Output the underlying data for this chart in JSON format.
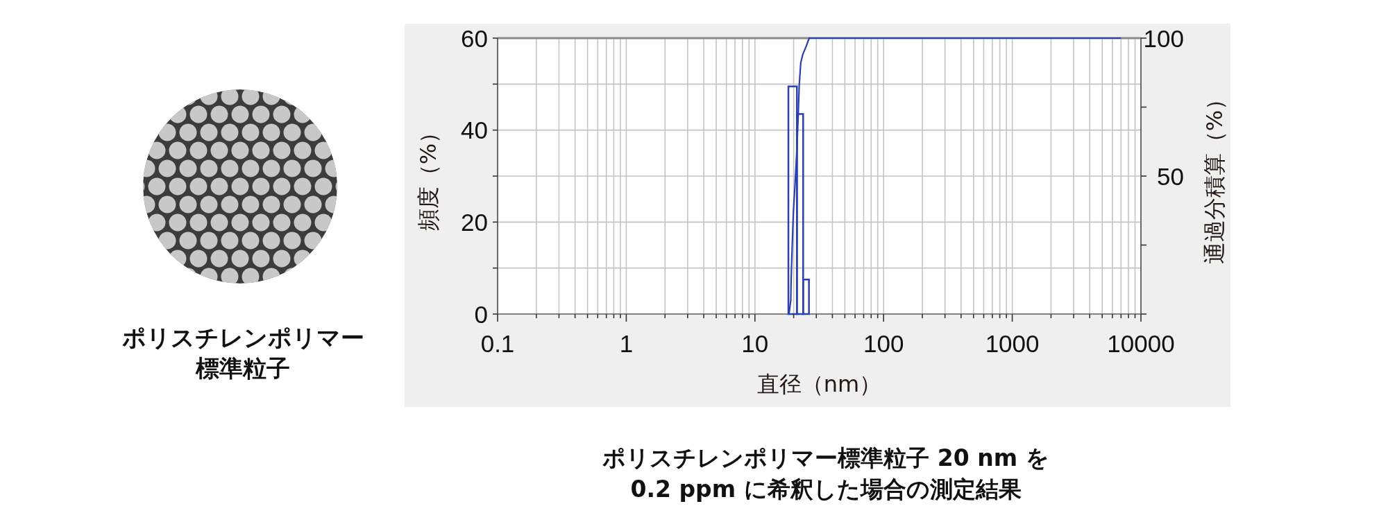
{
  "chart_data": {
    "type": "histogram",
    "log": "x",
    "grid": true,
    "xlabel": "直径（nm）",
    "ylabel": "頻度（%）",
    "y2label": "通過分積算（%）",
    "xlim": [
      0.1,
      10000
    ],
    "xticks": [
      0.1,
      {
        "value": 0.2,
        "label": null
      },
      {
        "value": 0.3,
        "label": null
      },
      {
        "value": 0.4,
        "label": null
      },
      {
        "value": 0.5,
        "label": null
      },
      {
        "value": 0.6,
        "label": null
      },
      {
        "value": 0.7,
        "label": null
      },
      {
        "value": 0.8,
        "label": null
      },
      {
        "value": 0.9,
        "label": null
      },
      1,
      {
        "value": 2,
        "label": null
      },
      {
        "value": 3,
        "label": null
      },
      {
        "value": 4,
        "label": null
      },
      {
        "value": 5,
        "label": null
      },
      {
        "value": 6,
        "label": null
      },
      {
        "value": 7,
        "label": null
      },
      {
        "value": 8,
        "label": null
      },
      {
        "value": 9,
        "label": null
      },
      10,
      {
        "value": 20,
        "label": null
      },
      {
        "value": 30,
        "label": null
      },
      {
        "value": 40,
        "label": null
      },
      {
        "value": 50,
        "label": null
      },
      {
        "value": 60,
        "label": null
      },
      {
        "value": 70,
        "label": null
      },
      {
        "value": 80,
        "label": null
      },
      {
        "value": 90,
        "label": null
      },
      100,
      {
        "value": 200,
        "label": null
      },
      {
        "value": 300,
        "label": null
      },
      {
        "value": 400,
        "label": null
      },
      {
        "value": 500,
        "label": null
      },
      {
        "value": 600,
        "label": null
      },
      {
        "value": 700,
        "label": null
      },
      {
        "value": 800,
        "label": null
      },
      {
        "value": 900,
        "label": null
      },
      1000,
      {
        "value": 2000,
        "label": null
      },
      {
        "value": 3000,
        "label": null
      },
      {
        "value": 4000,
        "label": null
      },
      {
        "value": 5000,
        "label": null
      },
      {
        "value": 6000,
        "label": null
      },
      {
        "value": 7000,
        "label": null
      },
      {
        "value": 8000,
        "label": null
      },
      {
        "value": 9000,
        "label": null
      },
      10000
    ],
    "ylim": [
      0,
      60
    ],
    "yticks": [
      0,
      {
        "value": 10,
        "label": null
      },
      20,
      {
        "value": 30,
        "label": null
      },
      40,
      {
        "value": 50,
        "label": null
      },
      60
    ],
    "y2lim": [
      0,
      100
    ],
    "y2ticks": [
      {
        "value": 0,
        "label": null
      },
      {
        "value": 25,
        "label": null
      },
      50,
      {
        "value": 75,
        "label": null
      },
      100
    ],
    "series": [
      {
        "color": "#2a3fb0",
        "bins": [
          18.2,
          21.2,
          23.7,
          26.3
        ],
        "values": [
          49.5,
          43.5,
          7.5
        ]
      },
      {
        "type": "line",
        "axis": "y2",
        "color": "#2a3fb0",
        "x": [
          18.4,
          19.0,
          19.1,
          19.5,
          19.9,
          20.5,
          21.2,
          21.7,
          22.1,
          22.7,
          23.5,
          25.0,
          26.4,
          7000
        ],
        "values": [
          0,
          5,
          12,
          25,
          37,
          47,
          60,
          72,
          83,
          91,
          94,
          97,
          100,
          100
        ]
      }
    ],
    "annotations": [
      "ポリスチレンポリマー",
      "標準粒子",
      "ポリスチレンポリマー標準粒子 20 nm を\n0.2 ppm に希釈した場合の測定結果"
    ]
  }
}
